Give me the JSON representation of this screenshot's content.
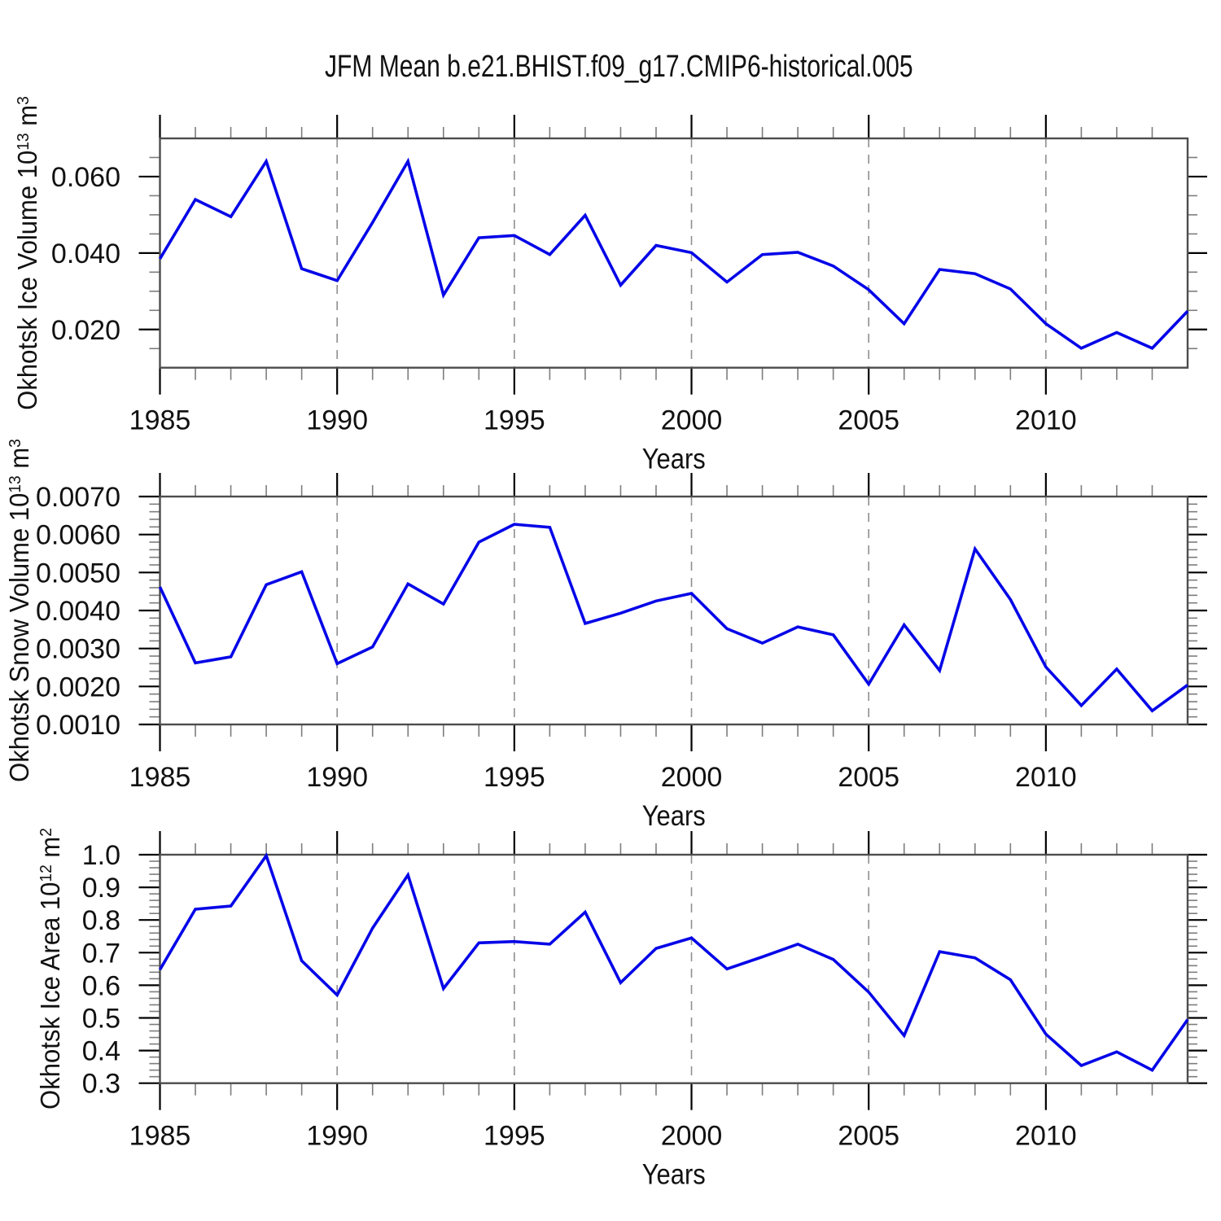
{
  "title": "JFM Mean b.e21.BHIST.f09_g17.CMIP6-historical.005",
  "colors": {
    "line": "#0505e8",
    "frame": "#4d4d4d",
    "major_tick": "#000000",
    "minor_tick": "#7d7d7d",
    "grid": "#8f8f8f",
    "text": "#111111",
    "background": "#ffffff"
  },
  "x_axis": {
    "label": "Years",
    "xlim": [
      1985,
      2014
    ],
    "major_tick_years": [
      1985,
      1990,
      1995,
      2000,
      2005,
      2010
    ],
    "major_tick_labels": [
      "1985",
      "1990",
      "1995",
      "2000",
      "2005",
      "2010"
    ],
    "minor_tick_step_years": 1,
    "grid_years": [
      1990,
      1995,
      2000,
      2005,
      2010
    ],
    "grid_style": "dashed"
  },
  "chart_data": [
    {
      "type": "line",
      "series_id": "okhotsk-ice-volume",
      "ylabel": "Okhotsk Ice Volume 10^13 m^3",
      "ylabel_parts": {
        "base": "Okhotsk Ice Volume 10",
        "exp": "13",
        "unit": " m",
        "unit_exp": "3"
      },
      "xlabel": "Years",
      "ylim": [
        0.01,
        0.07
      ],
      "ytick_values": [
        0.02,
        0.04,
        0.06
      ],
      "ytick_labels": [
        "0.020",
        "0.040",
        "0.060"
      ],
      "yminor_step": 0.005,
      "legend": "none",
      "x": [
        1985,
        1986,
        1987,
        1988,
        1989,
        1990,
        1991,
        1992,
        1993,
        1994,
        1995,
        1996,
        1997,
        1998,
        1999,
        2000,
        2001,
        2002,
        2003,
        2004,
        2005,
        2006,
        2007,
        2008,
        2009,
        2010,
        2011,
        2012,
        2013,
        2014
      ],
      "values": [
        0.0385,
        0.054,
        0.0495,
        0.064,
        0.0359,
        0.0328,
        0.048,
        0.064,
        0.029,
        0.044,
        0.0446,
        0.0396,
        0.0499,
        0.0316,
        0.042,
        0.0401,
        0.0324,
        0.0396,
        0.0402,
        0.0366,
        0.0304,
        0.0215,
        0.0357,
        0.0346,
        0.0306,
        0.0215,
        0.0151,
        0.0192,
        0.0151,
        0.0248
      ]
    },
    {
      "type": "line",
      "series_id": "okhotsk-snow-volume",
      "ylabel": "Okhotsk Snow Volume 10^13 m^3",
      "ylabel_parts": {
        "base": "Okhotsk Snow Volume 10",
        "exp": "13",
        "unit": " m",
        "unit_exp": "3"
      },
      "xlabel": "Years",
      "ylim": [
        0.001,
        0.007
      ],
      "ytick_values": [
        0.001,
        0.002,
        0.003,
        0.004,
        0.005,
        0.006,
        0.007
      ],
      "ytick_labels": [
        "0.0010",
        "0.0020",
        "0.0030",
        "0.0040",
        "0.0050",
        "0.0060",
        "0.0070"
      ],
      "yminor_step": 0.0002,
      "legend": "none",
      "x": [
        1985,
        1986,
        1987,
        1988,
        1989,
        1990,
        1991,
        1992,
        1993,
        1994,
        1995,
        1996,
        1997,
        1998,
        1999,
        2000,
        2001,
        2002,
        2003,
        2004,
        2005,
        2006,
        2007,
        2008,
        2009,
        2010,
        2011,
        2012,
        2013,
        2014
      ],
      "values": [
        0.00462,
        0.00262,
        0.00278,
        0.00468,
        0.00502,
        0.0026,
        0.00304,
        0.0047,
        0.00417,
        0.0058,
        0.00627,
        0.00619,
        0.00366,
        0.00393,
        0.00425,
        0.00445,
        0.00352,
        0.00314,
        0.00357,
        0.00336,
        0.00206,
        0.00362,
        0.00242,
        0.00562,
        0.00429,
        0.00251,
        0.0015,
        0.00246,
        0.00136,
        0.00204
      ]
    },
    {
      "type": "line",
      "series_id": "okhotsk-ice-area",
      "ylabel": "Okhotsk Ice Area 10^12 m^2",
      "ylabel_parts": {
        "base": "Okhotsk Ice Area 10",
        "exp": "12",
        "unit": " m",
        "unit_exp": "2"
      },
      "xlabel": "Years",
      "ylim": [
        0.3,
        1.0
      ],
      "ytick_values": [
        0.3,
        0.4,
        0.5,
        0.6,
        0.7,
        0.8,
        0.9,
        1.0
      ],
      "ytick_labels": [
        "0.3",
        "0.4",
        "0.5",
        "0.6",
        "0.7",
        "0.8",
        "0.9",
        "1.0"
      ],
      "yminor_step": 0.02,
      "legend": "none",
      "x": [
        1985,
        1986,
        1987,
        1988,
        1989,
        1990,
        1991,
        1992,
        1993,
        1994,
        1995,
        1996,
        1997,
        1998,
        1999,
        2000,
        2001,
        2002,
        2003,
        2004,
        2005,
        2006,
        2007,
        2008,
        2009,
        2010,
        2011,
        2012,
        2013,
        2014
      ],
      "values": [
        0.648,
        0.833,
        0.843,
        0.997,
        0.675,
        0.57,
        0.775,
        0.938,
        0.59,
        0.73,
        0.734,
        0.726,
        0.824,
        0.608,
        0.713,
        0.745,
        0.65,
        0.687,
        0.726,
        0.679,
        0.579,
        0.446,
        0.703,
        0.684,
        0.617,
        0.45,
        0.354,
        0.396,
        0.34,
        0.495
      ]
    }
  ]
}
